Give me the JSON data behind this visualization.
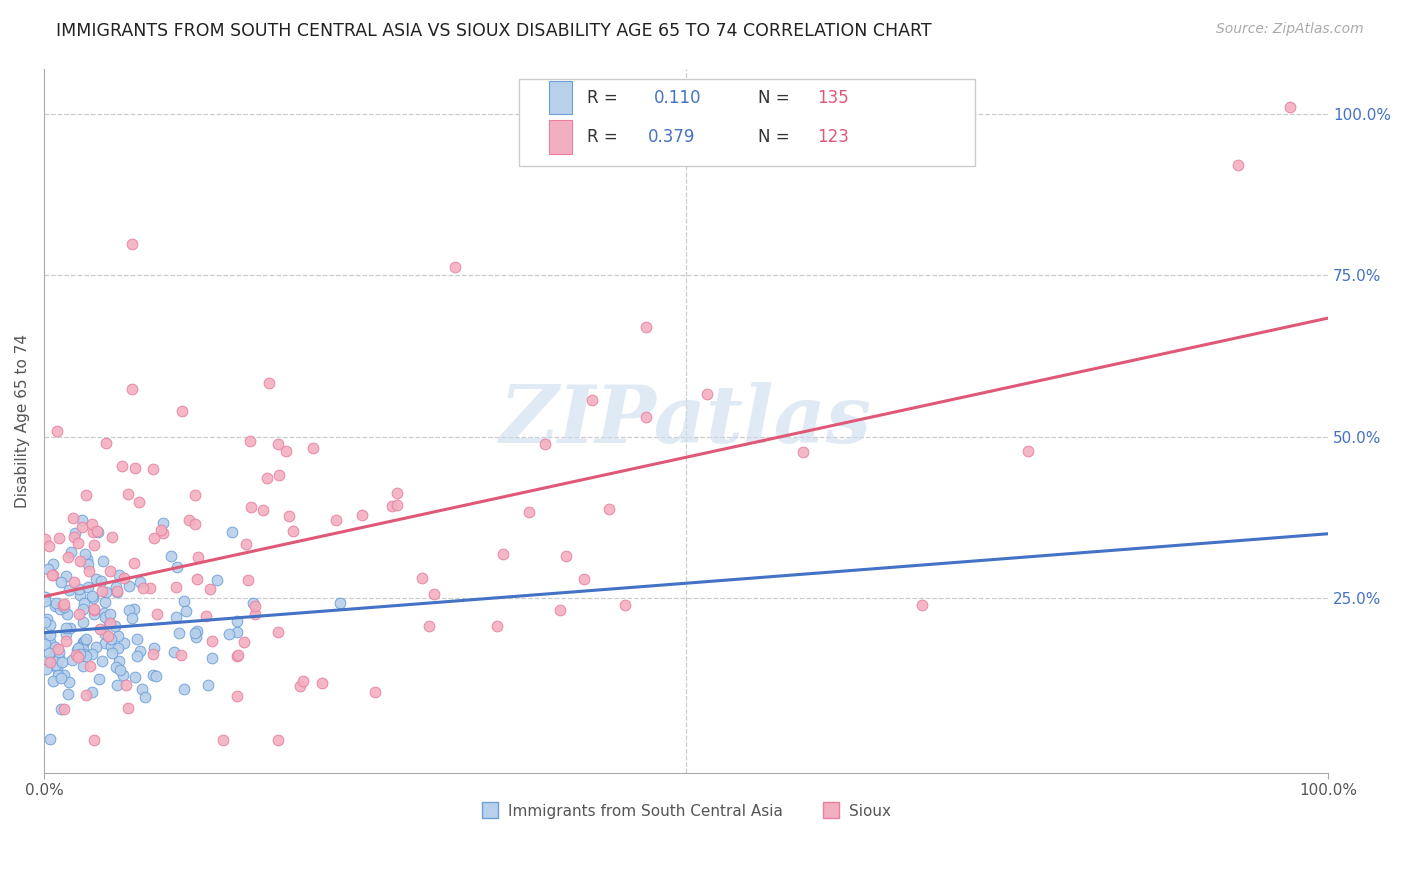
{
  "title": "IMMIGRANTS FROM SOUTH CENTRAL ASIA VS SIOUX DISABILITY AGE 65 TO 74 CORRELATION CHART",
  "source": "Source: ZipAtlas.com",
  "ylabel": "Disability Age 65 to 74",
  "xtick_labels": [
    "0.0%",
    "100.0%"
  ],
  "ytick_labels": [
    "25.0%",
    "50.0%",
    "75.0%",
    "100.0%"
  ],
  "ytick_positions": [
    0.25,
    0.5,
    0.75,
    1.0
  ],
  "blue_R": "0.110",
  "blue_N": "135",
  "pink_R": "0.379",
  "pink_N": "123",
  "blue_fill": "#b8d0ea",
  "pink_fill": "#f2afc0",
  "blue_edge": "#6a9fd8",
  "pink_edge": "#e87fa0",
  "blue_line": "#4472c4",
  "pink_line": "#e05878",
  "watermark": "ZIPatlas",
  "legend_label_blue": "Immigrants from South Central Asia",
  "legend_label_pink": "Sioux",
  "title_fontsize": 12.5,
  "source_fontsize": 10,
  "legend_R_color": "#4472c4",
  "legend_N_color": "#e05878"
}
